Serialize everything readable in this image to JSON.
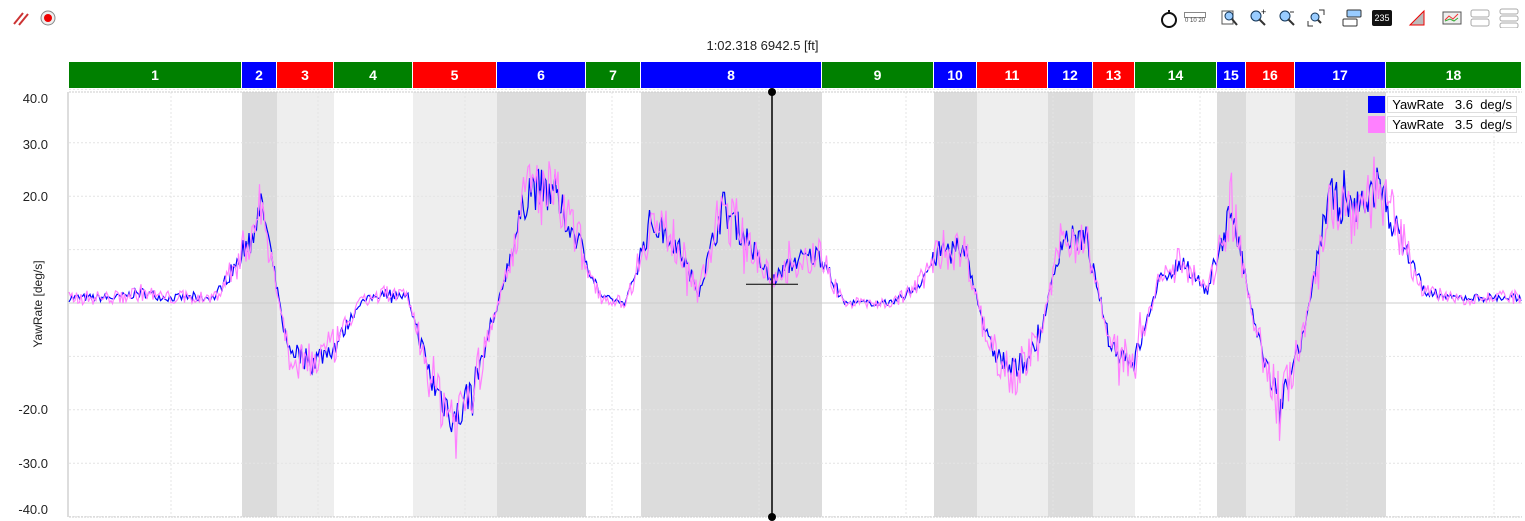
{
  "toolbar_left": [
    {
      "icon": "clear-lines-icon"
    },
    {
      "icon": "record-icon"
    }
  ],
  "toolbar_right": [
    {
      "icon": "stopwatch-icon"
    },
    {
      "icon": "ruler-icon",
      "text": "0 10 20"
    },
    {
      "icon": "zoom-page-icon"
    },
    {
      "icon": "zoom-in-icon"
    },
    {
      "icon": "zoom-out-icon"
    },
    {
      "icon": "zoom-fit-icon"
    },
    {
      "icon": "overlay-icon"
    },
    {
      "icon": "value-display-icon",
      "text": "235"
    },
    {
      "icon": "delta-triangle-icon"
    },
    {
      "icon": "chart-image-icon"
    },
    {
      "icon": "split-2-icon"
    },
    {
      "icon": "split-3-icon"
    }
  ],
  "cursor_readout": "1:02.318  6942.5 [ft]",
  "segments": [
    {
      "label": "1",
      "color": "#008000"
    },
    {
      "label": "2",
      "color": "#0000ff"
    },
    {
      "label": "3",
      "color": "#ff0000"
    },
    {
      "label": "4",
      "color": "#008000"
    },
    {
      "label": "5",
      "color": "#ff0000"
    },
    {
      "label": "6",
      "color": "#0000ff"
    },
    {
      "label": "7",
      "color": "#008000"
    },
    {
      "label": "8",
      "color": "#0000ff"
    },
    {
      "label": "9",
      "color": "#008000"
    },
    {
      "label": "10",
      "color": "#0000ff"
    },
    {
      "label": "11",
      "color": "#ff0000"
    },
    {
      "label": "12",
      "color": "#0000ff"
    },
    {
      "label": "13",
      "color": "#ff0000"
    },
    {
      "label": "14",
      "color": "#008000"
    },
    {
      "label": "15",
      "color": "#0000ff"
    },
    {
      "label": "16",
      "color": "#ff0000"
    },
    {
      "label": "17",
      "color": "#0000ff"
    },
    {
      "label": "18",
      "color": "#008000"
    }
  ],
  "chart_data": {
    "type": "line",
    "ylabel": "YawRate [deg/s]",
    "ylim": [
      -40,
      40
    ],
    "y_tick_labels": [
      "40.0",
      "30.0",
      "20.0",
      "-20.0",
      "-30.0",
      "-40.0"
    ],
    "grid": true,
    "legend_position": "top-right",
    "series": [
      {
        "name": "YawRate",
        "readout": "3.6",
        "unit": "deg/s",
        "color": "#0000ff"
      },
      {
        "name": "YawRate",
        "readout": "3.5",
        "unit": "deg/s",
        "color": "#ff80ff"
      }
    ],
    "yaw_profile": [
      1,
      1,
      1,
      2,
      1,
      1,
      1,
      8,
      18,
      -8,
      -11,
      -8,
      0,
      2,
      1,
      -15,
      -22,
      -12,
      5,
      22,
      20,
      12,
      1,
      0,
      15,
      12,
      2,
      18,
      12,
      4,
      8,
      9,
      0,
      0,
      0,
      3,
      10,
      10,
      -8,
      -13,
      -8,
      12,
      12,
      -8,
      -11,
      4,
      8,
      2,
      18,
      -5,
      -20,
      -6,
      20,
      17,
      22,
      12,
      2,
      1,
      1,
      1,
      1
    ]
  }
}
